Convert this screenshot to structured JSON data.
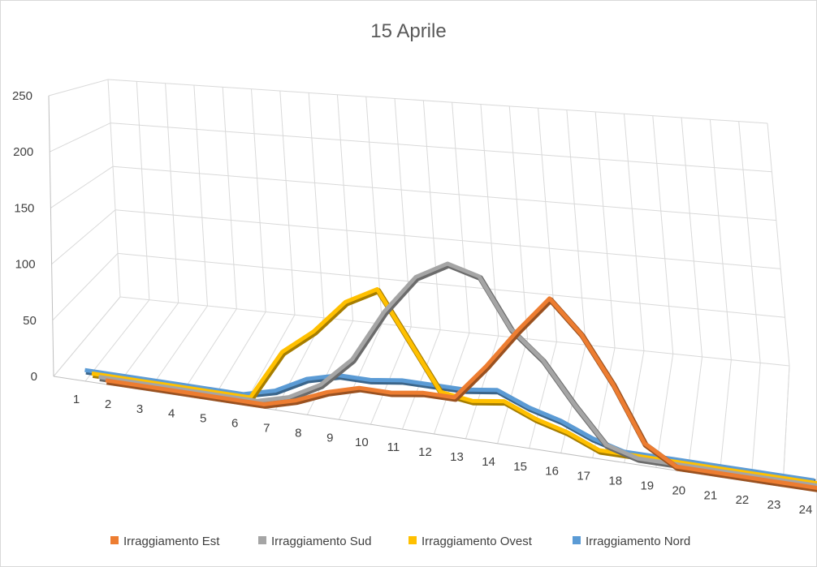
{
  "chart_data": {
    "type": "line",
    "title": "15 Aprile",
    "xlabel": "",
    "ylabel": "",
    "x": [
      "1",
      "2",
      "3",
      "4",
      "5",
      "6",
      "7",
      "8",
      "9",
      "10",
      "11",
      "12",
      "13",
      "14",
      "15",
      "16",
      "17",
      "18",
      "19",
      "20",
      "21",
      "22",
      "23",
      "24"
    ],
    "yticks": [
      "0",
      "50",
      "100",
      "150",
      "200",
      "250"
    ],
    "ylim": [
      0,
      250
    ],
    "grid": true,
    "legend": "bottom",
    "series": [
      {
        "name": "Irraggiamento Est",
        "color": "#ED7D31",
        "values": [
          0,
          0,
          0,
          0,
          0,
          0,
          10,
          25,
          35,
          35,
          40,
          40,
          80,
          125,
          165,
          130,
          80,
          20,
          0,
          0,
          0,
          0,
          0,
          0
        ]
      },
      {
        "name": "Irraggiamento Sud",
        "color": "#A5A5A5",
        "values": [
          0,
          0,
          0,
          0,
          0,
          0,
          10,
          30,
          65,
          125,
          170,
          190,
          180,
          125,
          95,
          50,
          10,
          0,
          0,
          0,
          0,
          0,
          0,
          0
        ]
      },
      {
        "name": "Irraggiamento Ovest",
        "color": "#FFC000",
        "values": [
          0,
          0,
          0,
          0,
          0,
          0,
          60,
          90,
          130,
          150,
          95,
          40,
          35,
          40,
          25,
          15,
          0,
          0,
          0,
          0,
          0,
          0,
          0,
          0
        ]
      },
      {
        "name": "Irraggiamento Nord",
        "color": "#5B9BD5",
        "values": [
          0,
          0,
          0,
          0,
          0,
          0,
          10,
          30,
          40,
          40,
          45,
          45,
          45,
          50,
          35,
          25,
          10,
          0,
          0,
          0,
          0,
          0,
          0,
          0
        ]
      }
    ]
  }
}
